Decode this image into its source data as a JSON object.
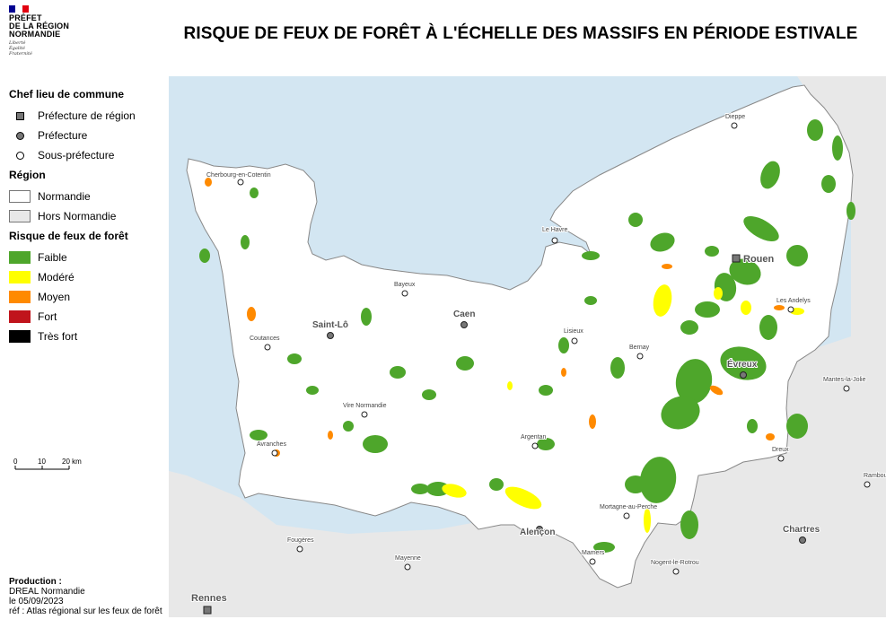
{
  "logo": {
    "lines": [
      "PRÉFET",
      "DE LA RÉGION",
      "NORMANDIE"
    ],
    "motto": [
      "Liberté",
      "Égalité",
      "Fraternité"
    ],
    "flag_colors": [
      "#000091",
      "#ffffff",
      "#e1000f"
    ]
  },
  "title": "RISQUE DE FEUX DE FORÊT À L'ÉCHELLE DES MASSIFS EN PÉRIODE ESTIVALE",
  "legend": {
    "groups": [
      {
        "title": "Chef lieu de commune",
        "items": [
          {
            "label": "Préfecture de région",
            "symbol": "square",
            "color": "#777777"
          },
          {
            "label": "Préfecture",
            "symbol": "circle",
            "color": "#777777"
          },
          {
            "label": "Sous-préfecture",
            "symbol": "circle",
            "color": "#ffffff"
          }
        ]
      },
      {
        "title": "Région",
        "items": [
          {
            "label": "Normandie",
            "symbol": "box",
            "color": "#ffffff"
          },
          {
            "label": "Hors Normandie",
            "symbol": "box",
            "color": "#e8e8e8"
          }
        ]
      },
      {
        "title": "Risque de feux de forêt",
        "items": [
          {
            "label": "Faible",
            "symbol": "fill",
            "color": "#4ea62b"
          },
          {
            "label": "Modéré",
            "symbol": "fill",
            "color": "#ffff00"
          },
          {
            "label": "Moyen",
            "symbol": "fill",
            "color": "#ff8a00"
          },
          {
            "label": "Fort",
            "symbol": "fill",
            "color": "#c0141c"
          },
          {
            "label": "Très fort",
            "symbol": "fill",
            "color": "#000000"
          }
        ]
      }
    ]
  },
  "scalebar": {
    "ticks": [
      "0",
      "10",
      "20 km"
    ]
  },
  "credits": {
    "heading": "Production :",
    "lines": [
      "DREAL Normandie",
      "le 05/09/2023",
      "réf : Atlas régional sur les feux de forêt"
    ]
  },
  "colors": {
    "sea": "#d3e6f2",
    "outside": "#e8e8e8",
    "normandie": "#ffffff",
    "forest_faible": "#4ea62b",
    "forest_modere": "#ffff00",
    "forest_moyen": "#ff8a00"
  },
  "cities": [
    {
      "name": "Cherbourg-en-Cotentin",
      "type": "sous-prefecture"
    },
    {
      "name": "Le Havre",
      "type": "sous-prefecture"
    },
    {
      "name": "Dieppe",
      "type": "sous-prefecture"
    },
    {
      "name": "Rouen",
      "type": "prefecture-region"
    },
    {
      "name": "Bayeux",
      "type": "sous-prefecture"
    },
    {
      "name": "Caen",
      "type": "prefecture"
    },
    {
      "name": "Saint-Lô",
      "type": "prefecture"
    },
    {
      "name": "Lisieux",
      "type": "sous-prefecture"
    },
    {
      "name": "Les Andelys",
      "type": "sous-prefecture"
    },
    {
      "name": "Coutances",
      "type": "sous-prefecture"
    },
    {
      "name": "Bernay",
      "type": "sous-prefecture"
    },
    {
      "name": "Évreux",
      "type": "prefecture"
    },
    {
      "name": "Vire Normandie",
      "type": "sous-prefecture"
    },
    {
      "name": "Mantes-la-Jolie",
      "type": "outside"
    },
    {
      "name": "Argentan",
      "type": "sous-prefecture"
    },
    {
      "name": "Avranches",
      "type": "sous-prefecture"
    },
    {
      "name": "Dreux",
      "type": "outside"
    },
    {
      "name": "Rambouillet",
      "type": "outside"
    },
    {
      "name": "Mortagne-au-Perche",
      "type": "sous-prefecture"
    },
    {
      "name": "Alençon",
      "type": "prefecture"
    },
    {
      "name": "Chartres",
      "type": "outside-prefecture"
    },
    {
      "name": "Fougères",
      "type": "outside"
    },
    {
      "name": "Mayenne",
      "type": "outside"
    },
    {
      "name": "Mamers",
      "type": "outside"
    },
    {
      "name": "Nogent-le-Rotrou",
      "type": "outside"
    },
    {
      "name": "Rennes",
      "type": "outside-region"
    }
  ]
}
